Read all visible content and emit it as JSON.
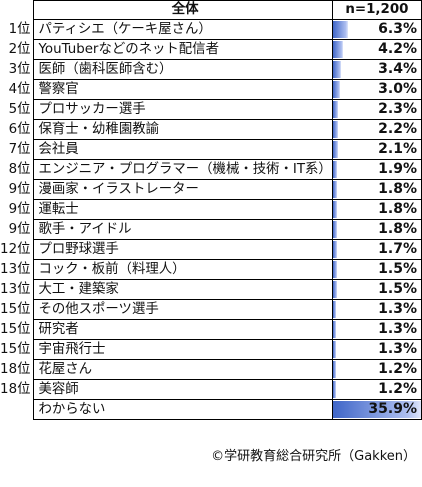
{
  "chart_data": {
    "type": "table",
    "header": {
      "rank": "",
      "category": "全体",
      "value": "n=1,200"
    },
    "unit": "%",
    "bar_max": 35.9,
    "rows": [
      {
        "rank": "1位",
        "name": "パティシエ（ケーキ屋さん）",
        "value": 6.3,
        "label": "6.3%"
      },
      {
        "rank": "2位",
        "name": "YouTuberなどのネット配信者",
        "value": 4.2,
        "label": "4.2%"
      },
      {
        "rank": "3位",
        "name": "医師（歯科医師含む）",
        "value": 3.4,
        "label": "3.4%"
      },
      {
        "rank": "4位",
        "name": "警察官",
        "value": 3.0,
        "label": "3.0%"
      },
      {
        "rank": "5位",
        "name": "プロサッカー選手",
        "value": 2.3,
        "label": "2.3%"
      },
      {
        "rank": "6位",
        "name": "保育士・幼稚園教諭",
        "value": 2.2,
        "label": "2.2%"
      },
      {
        "rank": "7位",
        "name": "会社員",
        "value": 2.1,
        "label": "2.1%"
      },
      {
        "rank": "8位",
        "name": "エンジニア・プログラマー（機械・技術・IT系）",
        "value": 1.9,
        "label": "1.9%"
      },
      {
        "rank": "9位",
        "name": "漫画家・イラストレーター",
        "value": 1.8,
        "label": "1.8%"
      },
      {
        "rank": "9位",
        "name": "運転士",
        "value": 1.8,
        "label": "1.8%"
      },
      {
        "rank": "9位",
        "name": "歌手・アイドル",
        "value": 1.8,
        "label": "1.8%"
      },
      {
        "rank": "12位",
        "name": "プロ野球選手",
        "value": 1.7,
        "label": "1.7%"
      },
      {
        "rank": "13位",
        "name": "コック・板前（料理人）",
        "value": 1.5,
        "label": "1.5%"
      },
      {
        "rank": "13位",
        "name": "大工・建築家",
        "value": 1.5,
        "label": "1.5%"
      },
      {
        "rank": "15位",
        "name": "その他スポーツ選手",
        "value": 1.3,
        "label": "1.3%"
      },
      {
        "rank": "15位",
        "name": "研究者",
        "value": 1.3,
        "label": "1.3%"
      },
      {
        "rank": "15位",
        "name": "宇宙飛行士",
        "value": 1.3,
        "label": "1.3%"
      },
      {
        "rank": "18位",
        "name": "花屋さん",
        "value": 1.2,
        "label": "1.2%"
      },
      {
        "rank": "18位",
        "name": "美容師",
        "value": 1.2,
        "label": "1.2%"
      },
      {
        "rank": "",
        "name": "わからない",
        "value": 35.9,
        "label": "35.9%"
      }
    ],
    "bar_color": "#4a6fd0"
  },
  "source": "©学研教育総合研究所（Gakken）"
}
